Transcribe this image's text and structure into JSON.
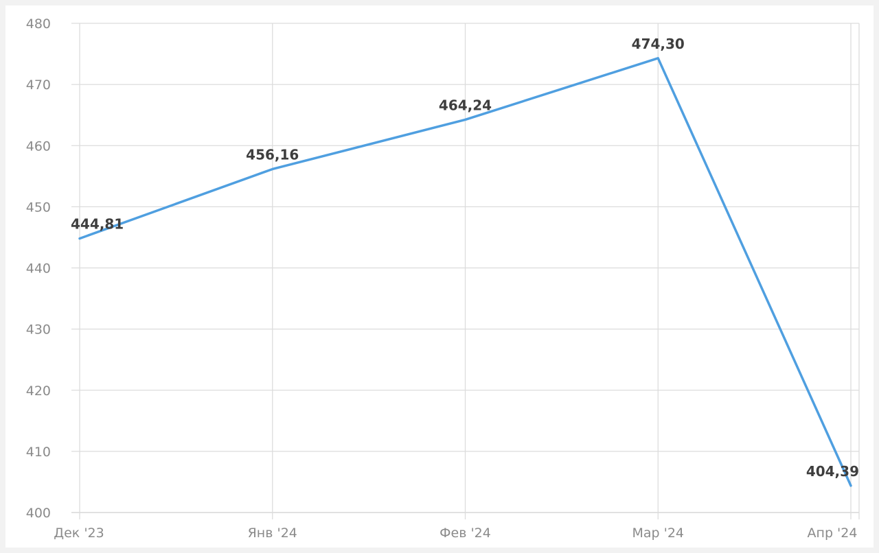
{
  "chart_data": {
    "type": "line",
    "title": "",
    "xlabel": "",
    "ylabel": "",
    "categories": [
      "Дек '23",
      "Янв '24",
      "Фев '24",
      "Мар '24",
      "Апр '24"
    ],
    "series": [
      {
        "values": [
          444.81,
          456.16,
          464.24,
          474.3,
          404.39
        ],
        "data_labels": [
          "444,81",
          "456,16",
          "464,24",
          "474,30",
          "404,39"
        ],
        "color": "#4f9fe0"
      }
    ],
    "ylim": [
      400,
      480
    ],
    "yticks": [
      400,
      410,
      420,
      430,
      440,
      450,
      460,
      470,
      480
    ],
    "grid": true,
    "legend": "none",
    "background": "#ffffff"
  }
}
